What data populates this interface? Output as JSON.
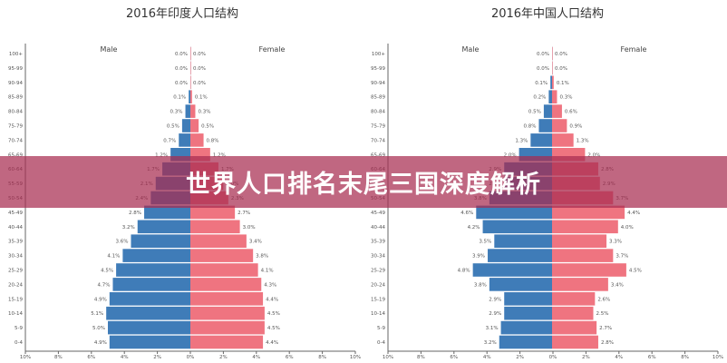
{
  "banner": {
    "text": "世界人口排名末尾三国深度解析"
  },
  "colors": {
    "male": "#3f7cb8",
    "female": "#ef7480",
    "banner": "#b0566f"
  },
  "chart_data": [
    {
      "type": "bar",
      "orientation": "horizontal-pyramid",
      "title": "2016年印度人口结构",
      "categories": [
        "100+",
        "95-99",
        "90-94",
        "85-89",
        "80-84",
        "75-79",
        "70-74",
        "65-69",
        "60-64",
        "55-59",
        "50-54",
        "45-49",
        "40-44",
        "35-39",
        "30-34",
        "25-29",
        "20-24",
        "15-19",
        "10-14",
        "5-9",
        "0-4"
      ],
      "series": [
        {
          "name": "Male",
          "values": [
            0.0,
            0.0,
            0.0,
            0.1,
            0.3,
            0.5,
            0.7,
            1.2,
            1.7,
            2.1,
            2.4,
            2.8,
            3.2,
            3.6,
            4.1,
            4.5,
            4.7,
            4.9,
            5.1,
            5.0,
            4.9
          ]
        },
        {
          "name": "Female",
          "values": [
            0.0,
            0.0,
            0.0,
            0.1,
            0.3,
            0.5,
            0.8,
            1.2,
            1.7,
            2.0,
            2.3,
            2.7,
            3.0,
            3.4,
            3.8,
            4.1,
            4.3,
            4.4,
            4.5,
            4.5,
            4.4
          ]
        }
      ],
      "xticks": [
        "10%",
        "8%",
        "6%",
        "4%",
        "2%",
        "0%",
        "2%",
        "4%",
        "6%",
        "8%",
        "10%"
      ],
      "xlim": [
        -10,
        10
      ],
      "unit": "%"
    },
    {
      "type": "bar",
      "orientation": "horizontal-pyramid",
      "title": "2016年中国人口结构",
      "categories": [
        "100+",
        "95-99",
        "90-94",
        "85-89",
        "80-84",
        "75-79",
        "70-74",
        "65-69",
        "60-64",
        "55-59",
        "50-54",
        "45-49",
        "40-44",
        "35-39",
        "30-34",
        "25-29",
        "20-24",
        "15-19",
        "10-14",
        "5-9",
        "0-4"
      ],
      "series": [
        {
          "name": "Male",
          "values": [
            0.0,
            0.0,
            0.1,
            0.2,
            0.5,
            0.8,
            1.3,
            2.0,
            2.9,
            2.9,
            3.8,
            4.6,
            4.2,
            3.5,
            3.9,
            4.8,
            3.8,
            2.9,
            2.9,
            3.1,
            3.2
          ]
        },
        {
          "name": "Female",
          "values": [
            0.0,
            0.0,
            0.1,
            0.3,
            0.6,
            0.9,
            1.3,
            2.0,
            2.8,
            2.9,
            3.7,
            4.4,
            4.0,
            3.3,
            3.7,
            4.5,
            3.4,
            2.6,
            2.5,
            2.7,
            2.8
          ]
        }
      ],
      "xticks": [
        "10%",
        "8%",
        "6%",
        "4%",
        "2%",
        "0%",
        "2%",
        "4%",
        "6%",
        "8%",
        "10%"
      ],
      "xlim": [
        -10,
        10
      ],
      "unit": "%"
    }
  ]
}
